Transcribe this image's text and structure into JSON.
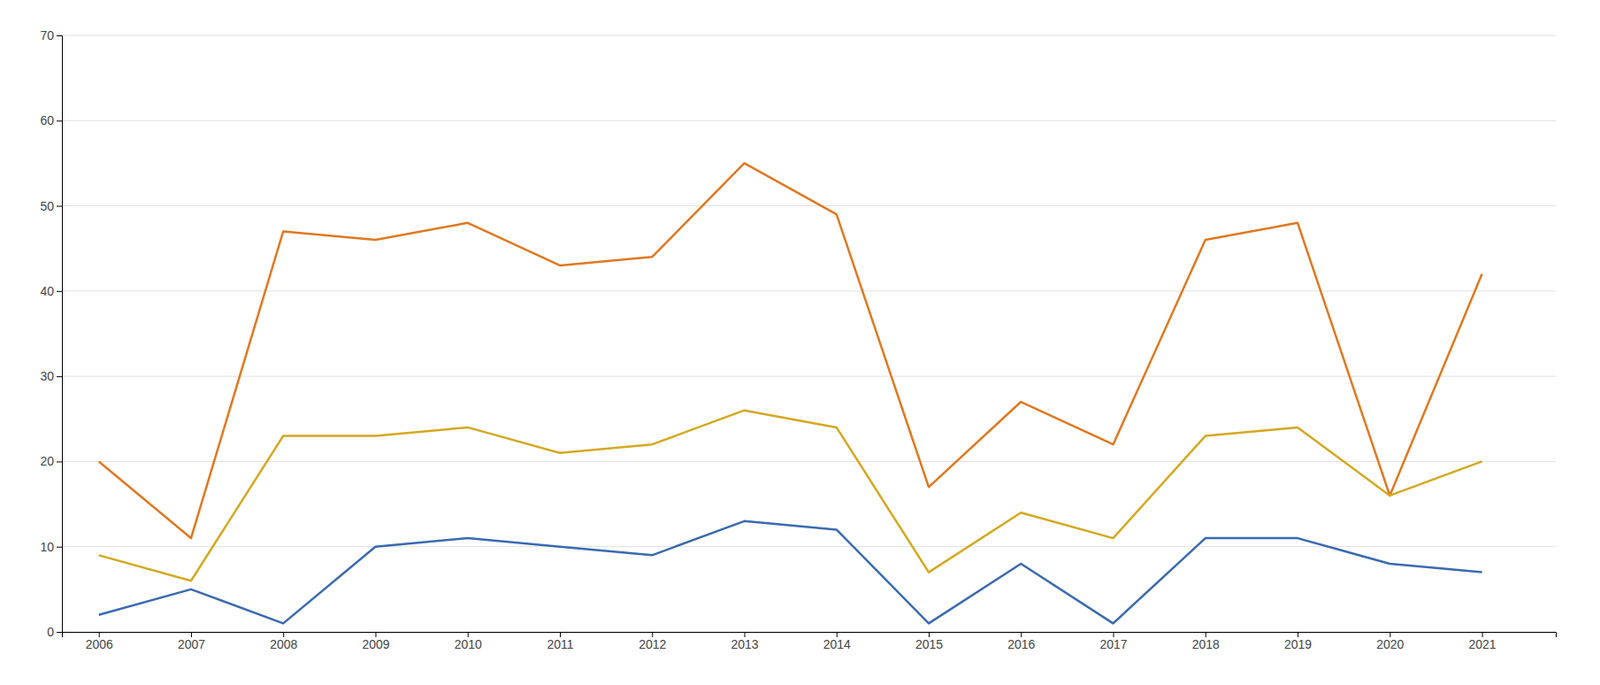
{
  "chart_data": {
    "type": "line",
    "x": [
      2006,
      2007,
      2008,
      2009,
      2010,
      2011,
      2012,
      2013,
      2014,
      2015,
      2016,
      2017,
      2018,
      2019,
      2020,
      2021
    ],
    "series": [
      {
        "color": "#3A6AB0",
        "values": [
          2,
          5,
          1,
          10,
          11,
          10,
          9,
          13,
          12,
          1,
          8,
          1,
          11,
          11,
          8,
          7
        ]
      },
      {
        "color": "#E07820",
        "values": [
          20,
          11,
          47,
          46,
          48,
          43,
          44,
          55,
          49,
          17,
          27,
          22,
          46,
          48,
          16,
          42
        ]
      },
      {
        "color": "#D4A820",
        "values": [
          9,
          6,
          23,
          23,
          24,
          21,
          22,
          26,
          24,
          7,
          14,
          11,
          23,
          24,
          16,
          20
        ]
      }
    ],
    "xlim": [
      2005.6,
      2021.8
    ],
    "xticks": [
      2006,
      2007,
      2008,
      2009,
      2010,
      2011,
      2012,
      2013,
      2014,
      2015,
      2016,
      2017,
      2018,
      2019,
      2020,
      2021
    ],
    "ylim": [
      0,
      70
    ],
    "yticks": [
      0,
      10,
      20,
      30,
      40,
      50,
      60,
      70
    ],
    "grid": true
  }
}
